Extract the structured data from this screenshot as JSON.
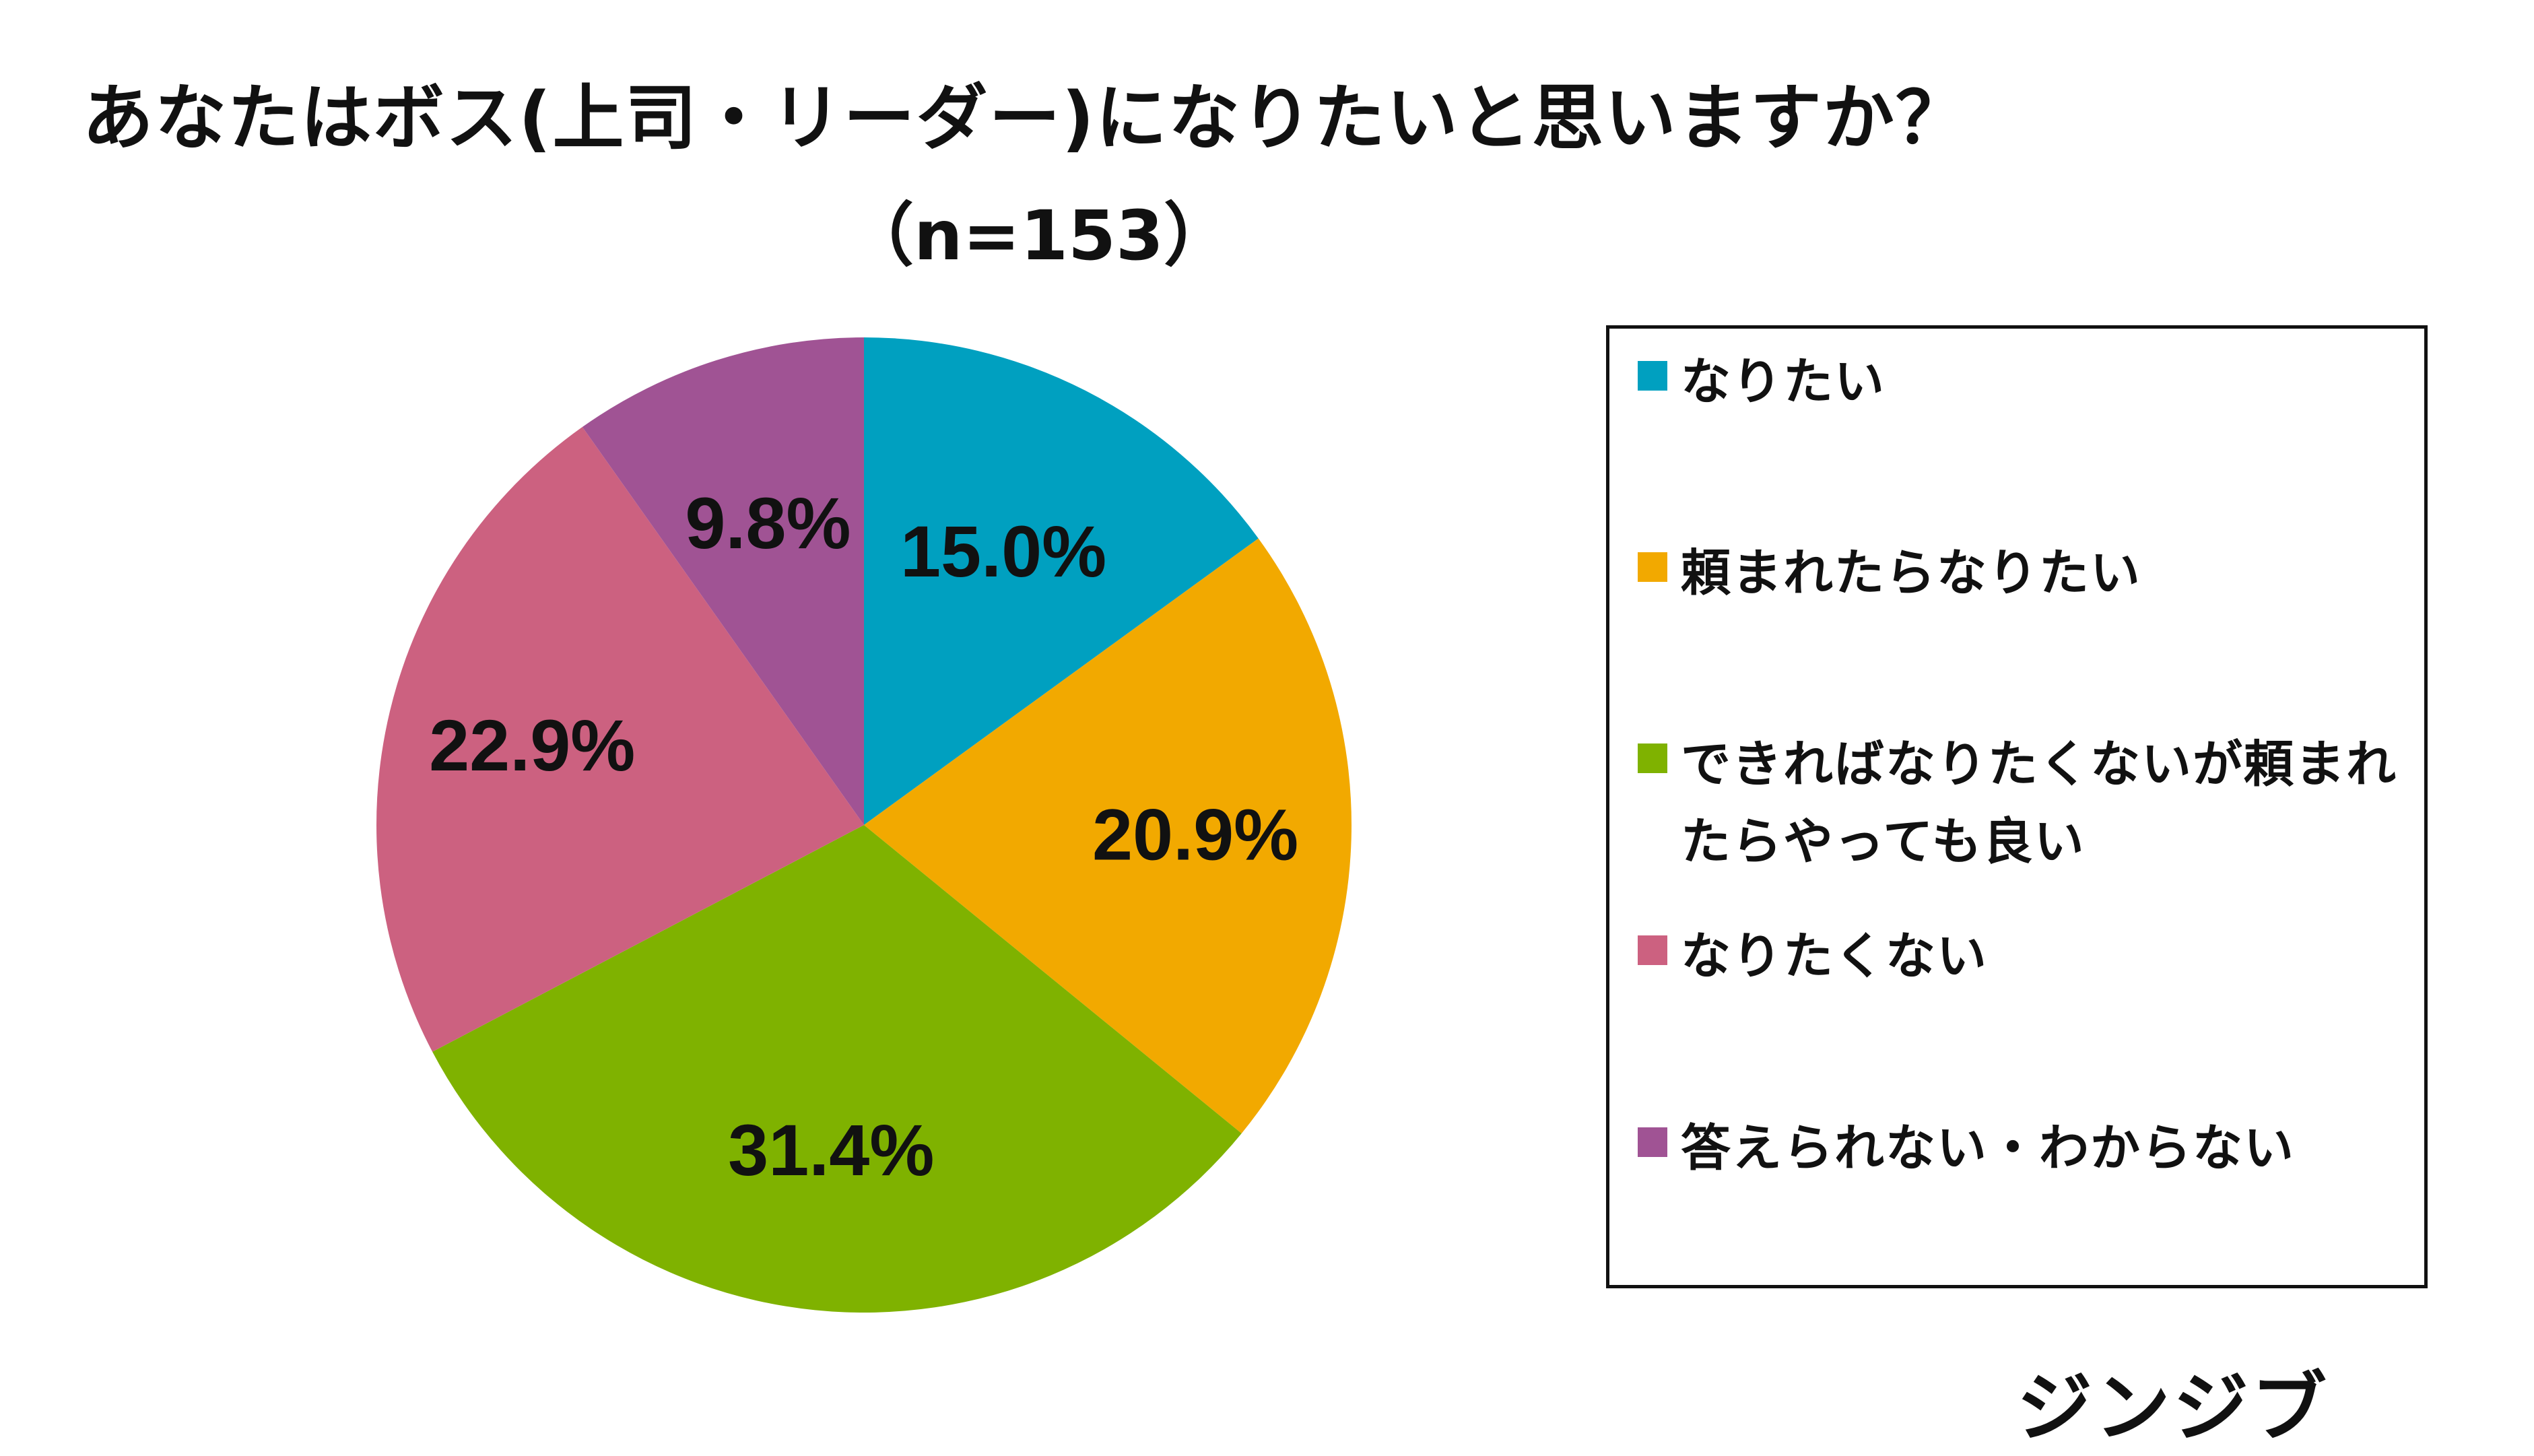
{
  "title": "あなたはボス(上司・リーダー)になりたいと思いますか？",
  "subtitle": "（n=153）",
  "brand": "ジンジブ",
  "chart_data": {
    "type": "pie",
    "title": "あなたはボス(上司・リーダー)になりたいと思いますか？",
    "subtitle": "（n=153）",
    "start_angle": "12 o'clock",
    "direction": "clockwise",
    "legend_position": "right",
    "slices": [
      {
        "label": "なりたい",
        "value": 15.0,
        "display": "15.0%",
        "color": "#00A0C0"
      },
      {
        "label": "頼まれたらなりたい",
        "value": 20.9,
        "display": "20.9%",
        "color": "#F2A900"
      },
      {
        "label": "できればなりたくないが頼まれたらやっても良い",
        "value": 31.4,
        "display": "31.4%",
        "color": "#7FB200"
      },
      {
        "label": "なりたくない",
        "value": 22.9,
        "display": "22.9%",
        "color": "#CC6180"
      },
      {
        "label": "答えられない・わからない",
        "value": 9.8,
        "display": "9.8%",
        "color": "#A05394"
      }
    ]
  }
}
